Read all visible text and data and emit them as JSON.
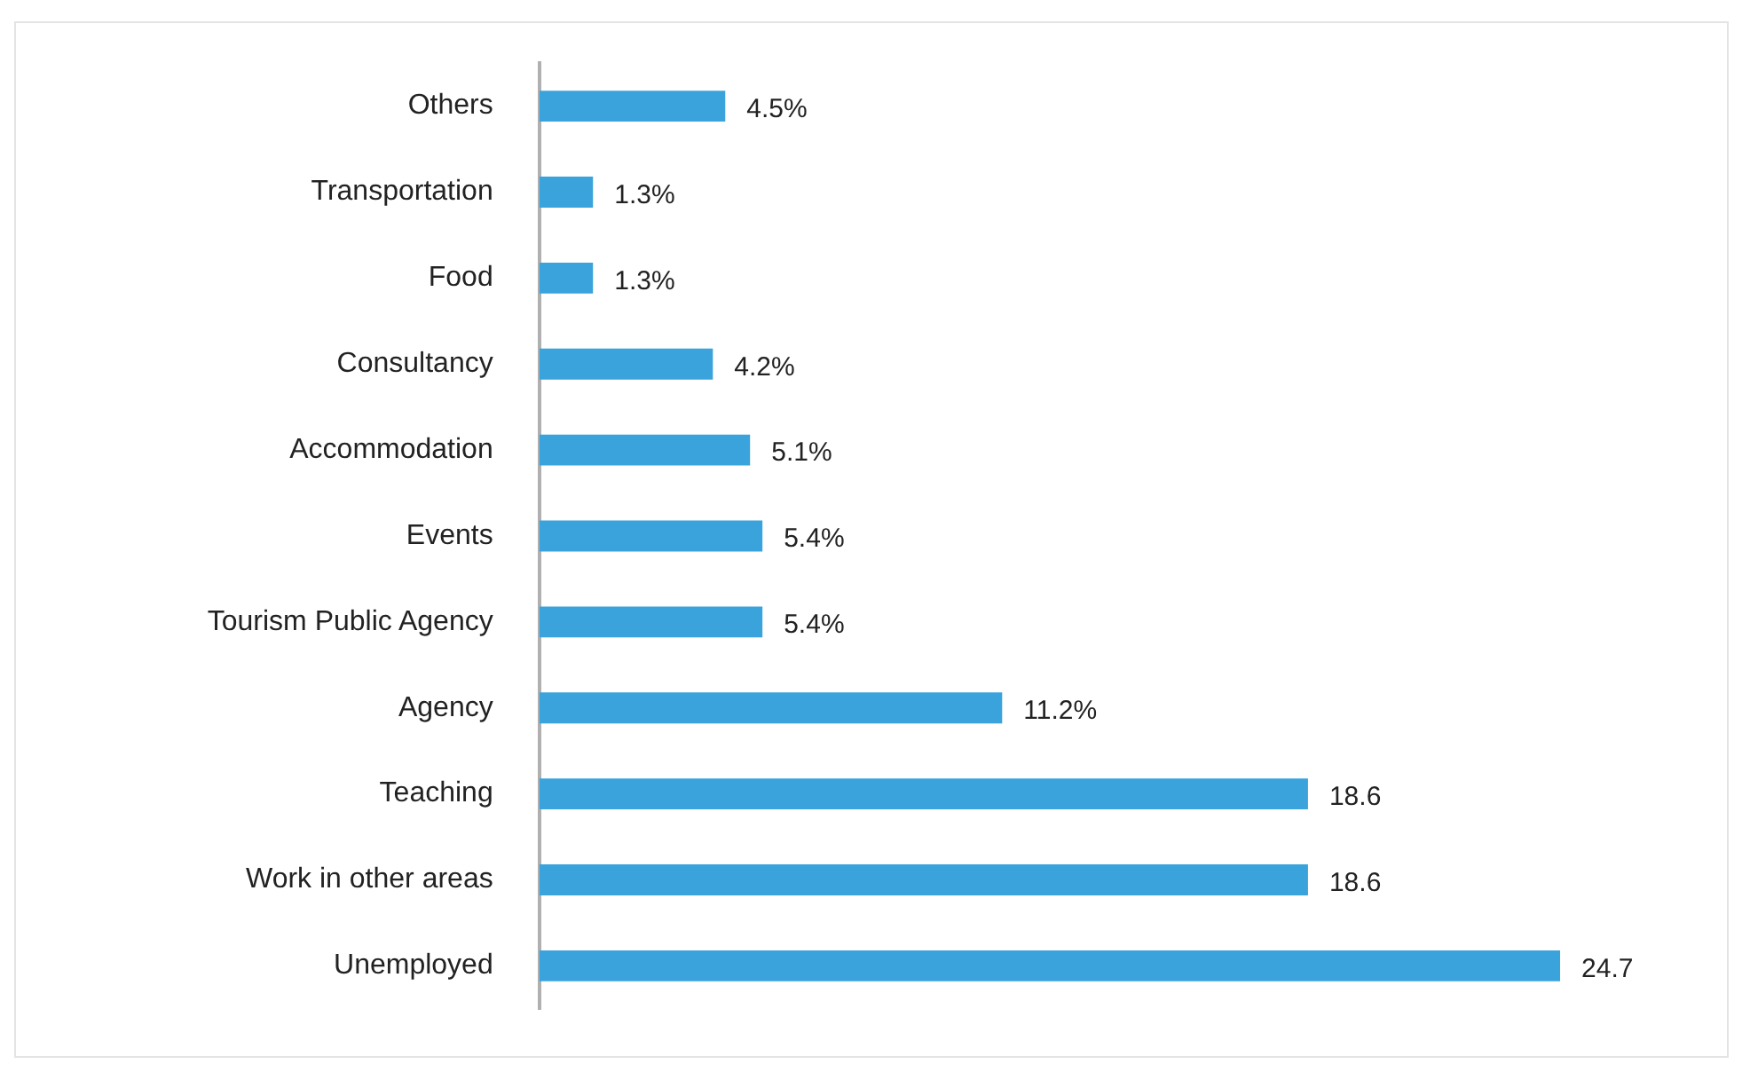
{
  "chart_data": {
    "type": "bar",
    "orientation": "horizontal",
    "categories": [
      "Others",
      "Transportation",
      "Food",
      "Consultancy",
      "Accommodation",
      "Events",
      "Tourism Public Agency",
      "Agency",
      "Teaching",
      "Work in other areas",
      "Unemployed"
    ],
    "values": [
      4.5,
      1.3,
      1.3,
      4.2,
      5.1,
      5.4,
      5.4,
      11.2,
      18.6,
      18.6,
      24.7
    ],
    "value_labels": [
      "4.5%",
      "1.3%",
      "1.3%",
      "4.2%",
      "5.1%",
      "5.4%",
      "5.4%",
      "11.2%",
      "18.6",
      "18.6",
      "24.7"
    ],
    "color": "#3aa3dc",
    "legend": false
  }
}
